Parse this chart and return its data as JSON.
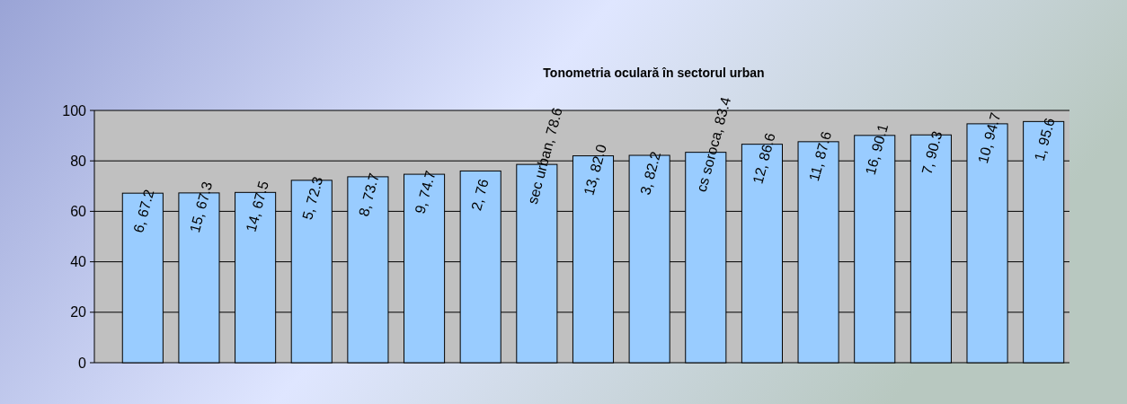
{
  "chart_data": {
    "type": "bar",
    "title": "Tonometria oculară  în sectorul urban",
    "categories": [
      null,
      null,
      null,
      null,
      null,
      null,
      null,
      null,
      null,
      null,
      null,
      null,
      null,
      null,
      null,
      null,
      null
    ],
    "values": [
      67.2,
      67.3,
      67.5,
      72.3,
      73.7,
      74.7,
      76,
      78.6,
      82.0,
      82.2,
      83.4,
      86.6,
      87.6,
      90.1,
      90.3,
      94.7,
      95.6
    ],
    "value_labels": [
      "6, 67.2",
      "15, 67.3",
      "14, 67.5",
      "5, 72.3",
      "8, 73.7",
      "9, 74.7",
      "2, 76",
      "sec urban, 78.6",
      "13, 82.0",
      "3, 82.2",
      "cs soroca, 83.4",
      "12, 86.6",
      "11, 87.6",
      "16, 90.1",
      "7, 90.3",
      "10, 94.7",
      "1, 95.6"
    ],
    "color": "#99ccff",
    "ylim": [
      0,
      100
    ],
    "yticks": [
      0,
      20,
      40,
      60,
      80,
      100
    ],
    "grid": "y",
    "tick_labels": "y"
  }
}
